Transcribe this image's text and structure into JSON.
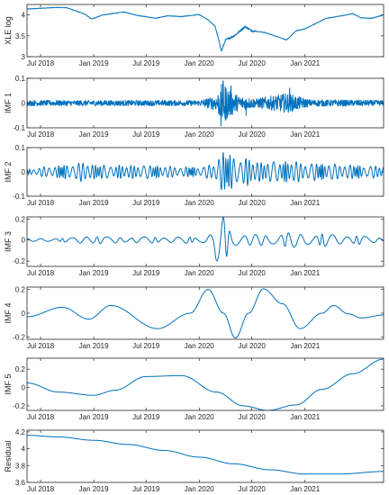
{
  "chart_data": [
    {
      "type": "line",
      "ylabel": "XLE log",
      "xlim": [
        "2018-05-15",
        "2021-09-30"
      ],
      "ylim": [
        3,
        4.25
      ],
      "yticks": [
        3,
        3.5,
        4
      ],
      "ytick_labels": [
        "3",
        "3.5",
        "4"
      ],
      "xtick_labels": [
        "Jul 2018",
        "Jan 2019",
        "Jul 2019",
        "Jan 2020",
        "Jul 2020",
        "Jan 2021"
      ],
      "series": [
        {
          "signal": "price",
          "x": [
            "2018-05-15",
            "2018-07-01",
            "2018-09-01",
            "2018-10-01",
            "2018-12-01",
            "2018-12-25",
            "2019-02-01",
            "2019-04-15",
            "2019-06-01",
            "2019-08-01",
            "2019-09-15",
            "2019-11-01",
            "2019-12-31",
            "2020-02-01",
            "2020-02-25",
            "2020-03-18",
            "2020-04-01",
            "2020-05-01",
            "2020-06-08",
            "2020-07-01",
            "2020-08-15",
            "2020-10-01",
            "2020-10-30",
            "2020-12-01",
            "2021-01-01",
            "2021-02-15",
            "2021-03-15",
            "2021-05-01",
            "2021-06-15",
            "2021-07-15",
            "2021-08-20",
            "2021-09-30"
          ],
          "values": [
            4.14,
            4.16,
            4.18,
            4.17,
            4.02,
            3.9,
            4.0,
            4.07,
            3.99,
            3.92,
            3.98,
            3.96,
            4.01,
            3.88,
            3.73,
            3.14,
            3.4,
            3.5,
            3.72,
            3.62,
            3.58,
            3.47,
            3.4,
            3.62,
            3.67,
            3.82,
            3.92,
            3.97,
            4.03,
            3.93,
            3.92,
            4.0
          ]
        }
      ]
    },
    {
      "type": "line",
      "ylabel": "IMF 1",
      "xlim": [
        "2018-05-15",
        "2021-09-30"
      ],
      "ylim": [
        -0.1,
        0.1
      ],
      "yticks": [
        -0.1,
        0,
        0.1
      ],
      "ytick_labels": [
        "-0.1",
        "0",
        "0.1"
      ],
      "xtick_labels": [
        "Jul 2018",
        "Jan 2019",
        "Jul 2019",
        "Jan 2020",
        "Jul 2020",
        "Jan 2021"
      ],
      "series": [
        {
          "signal": "noise",
          "envelope_x": [
            "2018-05-15",
            "2019-12-31",
            "2020-03-01",
            "2020-03-20",
            "2020-05-15",
            "2020-07-15",
            "2020-11-01",
            "2021-01-15",
            "2021-09-30"
          ],
          "envelope_values": [
            0.011,
            0.011,
            0.03,
            0.085,
            0.03,
            0.018,
            0.04,
            0.014,
            0.011
          ],
          "spikes_x": [
            "2020-03-16",
            "2020-03-24",
            "2020-03-30",
            "2020-04-20",
            "2020-11-09",
            "2020-06-11"
          ],
          "spikes_values": [
            -0.092,
            0.09,
            -0.06,
            0.07,
            0.06,
            -0.05
          ]
        }
      ]
    },
    {
      "type": "line",
      "ylabel": "IMF 2",
      "xlim": [
        "2018-05-15",
        "2021-09-30"
      ],
      "ylim": [
        -0.1,
        0.1
      ],
      "yticks": [
        -0.1,
        0,
        0.1
      ],
      "ytick_labels": [
        "-0.1",
        "0",
        "0.1"
      ],
      "xtick_labels": [
        "Jul 2018",
        "Jan 2019",
        "Jul 2019",
        "Jan 2020",
        "Jul 2020",
        "Jan 2021"
      ],
      "series": [
        {
          "signal": "oscillation",
          "period_days": 21,
          "envelope_x": [
            "2018-05-15",
            "2018-08-15",
            "2018-12-01",
            "2019-01-15",
            "2019-06-01",
            "2019-12-31",
            "2020-02-15",
            "2020-03-20",
            "2020-06-01",
            "2020-08-01",
            "2020-11-15",
            "2021-01-15",
            "2021-09-30"
          ],
          "envelope_values": [
            0.012,
            0.025,
            0.04,
            0.028,
            0.028,
            0.02,
            0.03,
            0.08,
            0.06,
            0.04,
            0.045,
            0.035,
            0.025
          ]
        }
      ]
    },
    {
      "type": "line",
      "ylabel": "IMF 3",
      "xlim": [
        "2018-05-15",
        "2021-09-30"
      ],
      "ylim": [
        -0.25,
        0.22
      ],
      "yticks": [
        -0.2,
        0,
        0.2
      ],
      "ytick_labels": [
        "-0.2",
        "0",
        "0.2"
      ],
      "xtick_labels": [
        "Jul 2018",
        "Jan 2019",
        "Jul 2019",
        "Jan 2020",
        "Jul 2020",
        "Jan 2021"
      ],
      "series": [
        {
          "signal": "oscillation",
          "period_days": 60,
          "envelope_x": [
            "2018-05-15",
            "2018-10-01",
            "2018-12-20",
            "2019-03-01",
            "2019-12-31",
            "2020-02-15",
            "2020-03-01",
            "2020-03-25",
            "2020-04-30",
            "2020-06-15",
            "2020-09-01",
            "2020-11-15",
            "2021-03-01",
            "2021-09-30"
          ],
          "envelope_values": [
            0.012,
            0.02,
            0.045,
            0.03,
            0.03,
            0.06,
            0.2,
            0.225,
            0.08,
            0.05,
            0.06,
            0.07,
            0.06,
            0.03
          ]
        }
      ]
    },
    {
      "type": "line",
      "ylabel": "IMF 4",
      "xlim": [
        "2018-05-15",
        "2021-09-30"
      ],
      "ylim": [
        -0.22,
        0.22
      ],
      "yticks": [
        -0.2,
        0,
        0.2
      ],
      "ytick_labels": [
        "-0.2",
        "0",
        "0.2"
      ],
      "xtick_labels": [
        "Jul 2018",
        "Jan 2019",
        "Jul 2019",
        "Jan 2020",
        "Jul 2020",
        "Jan 2021"
      ],
      "series": [
        {
          "signal": "points",
          "x": [
            "2018-05-15",
            "2018-09-15",
            "2018-12-15",
            "2019-03-01",
            "2019-08-10",
            "2019-12-01",
            "2020-02-01",
            "2020-03-25",
            "2020-05-05",
            "2020-06-20",
            "2020-08-10",
            "2020-10-15",
            "2020-12-15",
            "2021-03-01",
            "2021-04-10",
            "2021-05-30",
            "2021-07-15",
            "2021-09-30"
          ],
          "values": [
            -0.03,
            0.05,
            -0.05,
            0.065,
            -0.13,
            0.0,
            0.2,
            0.0,
            -0.21,
            0.0,
            0.205,
            0.08,
            -0.13,
            0.0,
            0.065,
            -0.005,
            -0.04,
            -0.015
          ]
        }
      ]
    },
    {
      "type": "line",
      "ylabel": "IMF 5",
      "xlim": [
        "2018-05-15",
        "2021-09-30"
      ],
      "ylim": [
        -0.25,
        0.32
      ],
      "yticks": [
        -0.2,
        0,
        0.2
      ],
      "ytick_labels": [
        "-0.2",
        "0",
        "0.2"
      ],
      "xtick_labels": [
        "Jul 2018",
        "Jan 2019",
        "Jul 2019",
        "Jan 2020",
        "Jul 2020",
        "Jan 2021"
      ],
      "series": [
        {
          "signal": "points",
          "x": [
            "2018-05-15",
            "2018-09-01",
            "2019-01-01",
            "2019-03-15",
            "2019-07-01",
            "2019-11-01",
            "2020-03-01",
            "2020-06-01",
            "2020-08-25",
            "2020-12-01",
            "2021-03-01",
            "2021-06-15",
            "2021-09-30"
          ],
          "values": [
            0.05,
            -0.05,
            -0.085,
            -0.03,
            0.12,
            0.13,
            -0.05,
            -0.2,
            -0.25,
            -0.19,
            -0.02,
            0.15,
            0.31
          ]
        }
      ]
    },
    {
      "type": "line",
      "ylabel": "Residual",
      "xlim": [
        "2018-05-15",
        "2021-09-30"
      ],
      "ylim": [
        3.6,
        4.22
      ],
      "yticks": [
        3.6,
        3.8,
        4,
        4.2
      ],
      "ytick_labels": [
        "3.6",
        "3.8",
        "4",
        "4.2"
      ],
      "xtick_labels": [
        "Jul 2018",
        "Jan 2019",
        "Jul 2019",
        "Jan 2020",
        "Jul 2020",
        "Jan 2021"
      ],
      "series": [
        {
          "signal": "points",
          "x": [
            "2018-05-15",
            "2018-09-01",
            "2019-01-01",
            "2019-05-01",
            "2019-09-01",
            "2020-01-01",
            "2020-05-01",
            "2020-09-01",
            "2021-01-01",
            "2021-05-01",
            "2021-09-30"
          ],
          "values": [
            4.16,
            4.14,
            4.1,
            4.05,
            3.98,
            3.9,
            3.82,
            3.75,
            3.7,
            3.7,
            3.73
          ]
        }
      ]
    }
  ],
  "style": {
    "line_color": "#0072bd",
    "axis_color": "#262626",
    "background": "#ffffff"
  }
}
